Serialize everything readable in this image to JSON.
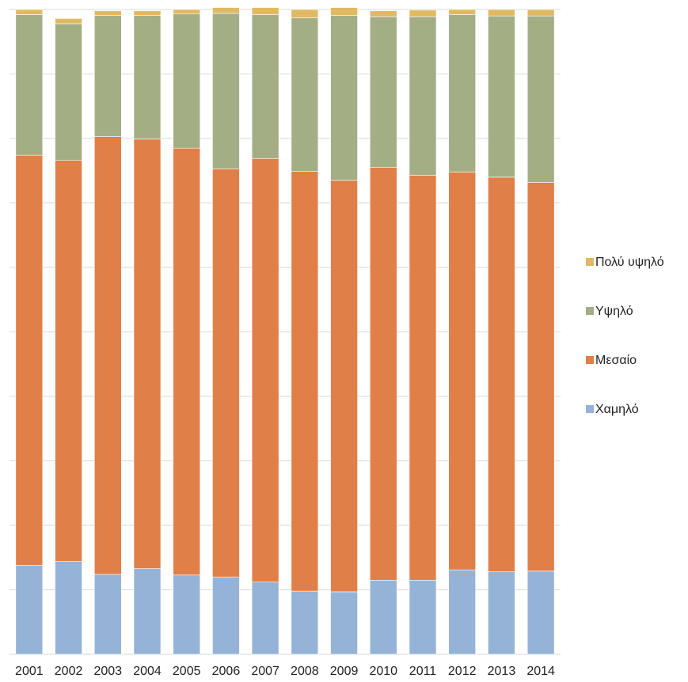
{
  "chart_data": {
    "type": "bar",
    "stacked": true,
    "normalized": true,
    "title": "",
    "xlabel": "",
    "ylabel": "",
    "ylim": [
      0,
      1
    ],
    "grid": true,
    "legend_position": "right",
    "categories": [
      "2001",
      "2002",
      "2003",
      "2004",
      "2005",
      "2006",
      "2007",
      "2008",
      "2009",
      "2010",
      "2011",
      "2012",
      "2013",
      "2014"
    ],
    "series": [
      {
        "name": "Χαμηλό",
        "color": "#95b3d7",
        "values": [
          0.138,
          0.144,
          0.124,
          0.133,
          0.123,
          0.12,
          0.112,
          0.098,
          0.097,
          0.115,
          0.115,
          0.131,
          0.128,
          0.129
        ]
      },
      {
        "name": "Μεσαίο",
        "color": "#e07f47",
        "values": [
          0.636,
          0.622,
          0.679,
          0.666,
          0.662,
          0.633,
          0.657,
          0.651,
          0.638,
          0.64,
          0.628,
          0.617,
          0.612,
          0.603
        ]
      },
      {
        "name": "Υψηλό",
        "color": "#a4ae84",
        "values": [
          0.218,
          0.212,
          0.188,
          0.192,
          0.208,
          0.241,
          0.223,
          0.238,
          0.256,
          0.234,
          0.246,
          0.244,
          0.25,
          0.258
        ]
      },
      {
        "name": "Πολύ υψηλό",
        "color": "#e1b962",
        "values": [
          0.008,
          0.008,
          0.007,
          0.007,
          0.007,
          0.009,
          0.011,
          0.013,
          0.012,
          0.009,
          0.01,
          0.008,
          0.01,
          0.01
        ]
      }
    ],
    "legend_order": [
      "Πολύ υψηλό",
      "Υψηλό",
      "Μεσαίο",
      "Χαμηλό"
    ]
  }
}
